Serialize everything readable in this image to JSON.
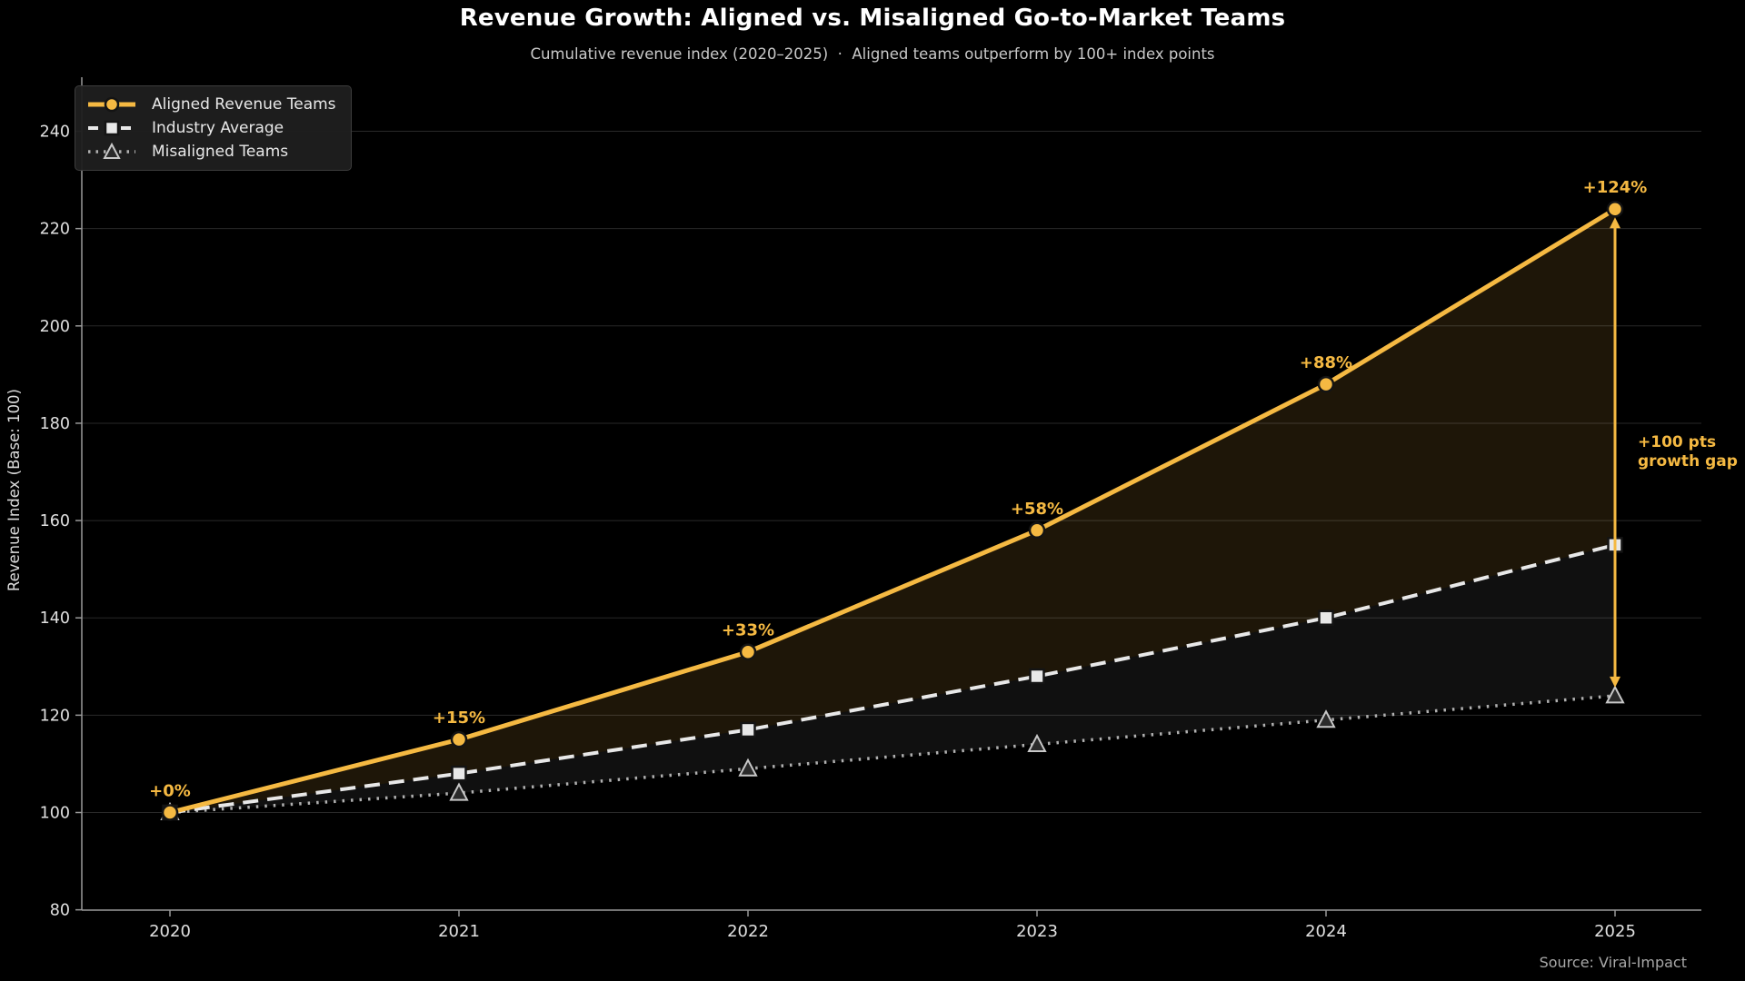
{
  "header": {
    "title": "Revenue Growth: Aligned vs. Misaligned Go-to-Market Teams",
    "subtitle": "Cumulative revenue index (2020–2025)  ·  Aligned teams outperform by 100+ index points"
  },
  "legend": {
    "items": [
      {
        "label": "Aligned Revenue Teams"
      },
      {
        "label": "Industry Average"
      },
      {
        "label": "Misaligned Teams"
      }
    ]
  },
  "annotations": {
    "gap_label_line1": "+100 pts",
    "gap_label_line2": "growth gap",
    "gap_arrow": {
      "x": "2025",
      "from": 224,
      "to": 124
    }
  },
  "source": "Source: Viral-Impact",
  "colors": {
    "accent": "#f5b942",
    "industry": "#e8e8e8",
    "misaligned": "#b0b0b0",
    "background": "#000000",
    "grid": "rgba(255,255,255,0.16)",
    "tick_text": "#e0e0e0",
    "subtitle_text": "#c9c9c9",
    "source_text": "#a8a8a8"
  },
  "chart_data": {
    "type": "line",
    "title": "Revenue Growth: Aligned vs. Misaligned Go-to-Market Teams",
    "subtitle": "Cumulative revenue index (2020–2025) · Aligned teams outperform by 100+ index points",
    "x": [
      2020,
      2021,
      2022,
      2023,
      2024,
      2025
    ],
    "series": [
      {
        "name": "Aligned Revenue Teams",
        "color": "#f5b942",
        "style": "solid",
        "marker": "circle",
        "values": [
          100,
          115,
          133,
          158,
          188,
          224
        ],
        "point_labels": [
          "+0%",
          "+15%",
          "+33%",
          "+58%",
          "+88%",
          "+124%"
        ]
      },
      {
        "name": "Industry Average",
        "color": "#e8e8e8",
        "style": "dashed",
        "marker": "square",
        "values": [
          100,
          108,
          117,
          128,
          140,
          155
        ]
      },
      {
        "name": "Misaligned Teams",
        "color": "#b0b0b0",
        "style": "dotted",
        "marker": "triangle",
        "values": [
          100,
          104,
          109,
          114,
          119,
          124
        ]
      }
    ],
    "xlabel": "",
    "ylabel": "Revenue Index (Base: 100)",
    "ylim": [
      80,
      250
    ],
    "yticks": [
      80,
      100,
      120,
      140,
      160,
      180,
      200,
      220,
      240
    ],
    "grid": "horizontal",
    "legend_position": "upper-left"
  }
}
